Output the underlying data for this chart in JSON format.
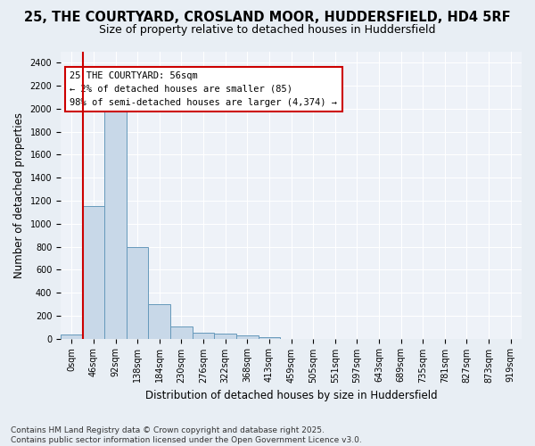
{
  "title_line1": "25, THE COURTYARD, CROSLAND MOOR, HUDDERSFIELD, HD4 5RF",
  "title_line2": "Size of property relative to detached houses in Huddersfield",
  "xlabel": "Distribution of detached houses by size in Huddersfield",
  "ylabel": "Number of detached properties",
  "bar_color": "#c8d8e8",
  "bar_edge_color": "#6699bb",
  "background_color": "#e8eef4",
  "plot_bg_color": "#eef2f8",
  "grid_color": "#ffffff",
  "annotation_text": "25 THE COURTYARD: 56sqm\n← 2% of detached houses are smaller (85)\n98% of semi-detached houses are larger (4,374) →",
  "annotation_box_color": "#ffffff",
  "annotation_box_edge": "#cc0000",
  "annotation_fontsize": 7.5,
  "bin_labels": [
    "0sqm",
    "46sqm",
    "92sqm",
    "138sqm",
    "184sqm",
    "230sqm",
    "276sqm",
    "322sqm",
    "368sqm",
    "413sqm",
    "459sqm",
    "505sqm",
    "551sqm",
    "597sqm",
    "643sqm",
    "689sqm",
    "735sqm",
    "781sqm",
    "827sqm",
    "873sqm",
    "919sqm"
  ],
  "bar_heights": [
    35,
    1150,
    2020,
    795,
    300,
    105,
    50,
    45,
    28,
    15,
    0,
    0,
    0,
    0,
    0,
    0,
    0,
    0,
    0,
    0,
    0
  ],
  "ylim": [
    0,
    2500
  ],
  "yticks": [
    0,
    200,
    400,
    600,
    800,
    1000,
    1200,
    1400,
    1600,
    1800,
    2000,
    2200,
    2400
  ],
  "marker_bin_index": 1,
  "footnote": "Contains HM Land Registry data © Crown copyright and database right 2025.\nContains public sector information licensed under the Open Government Licence v3.0.",
  "title_fontsize": 10.5,
  "subtitle_fontsize": 9,
  "axis_label_fontsize": 8.5,
  "tick_fontsize": 7,
  "footnote_fontsize": 6.5
}
